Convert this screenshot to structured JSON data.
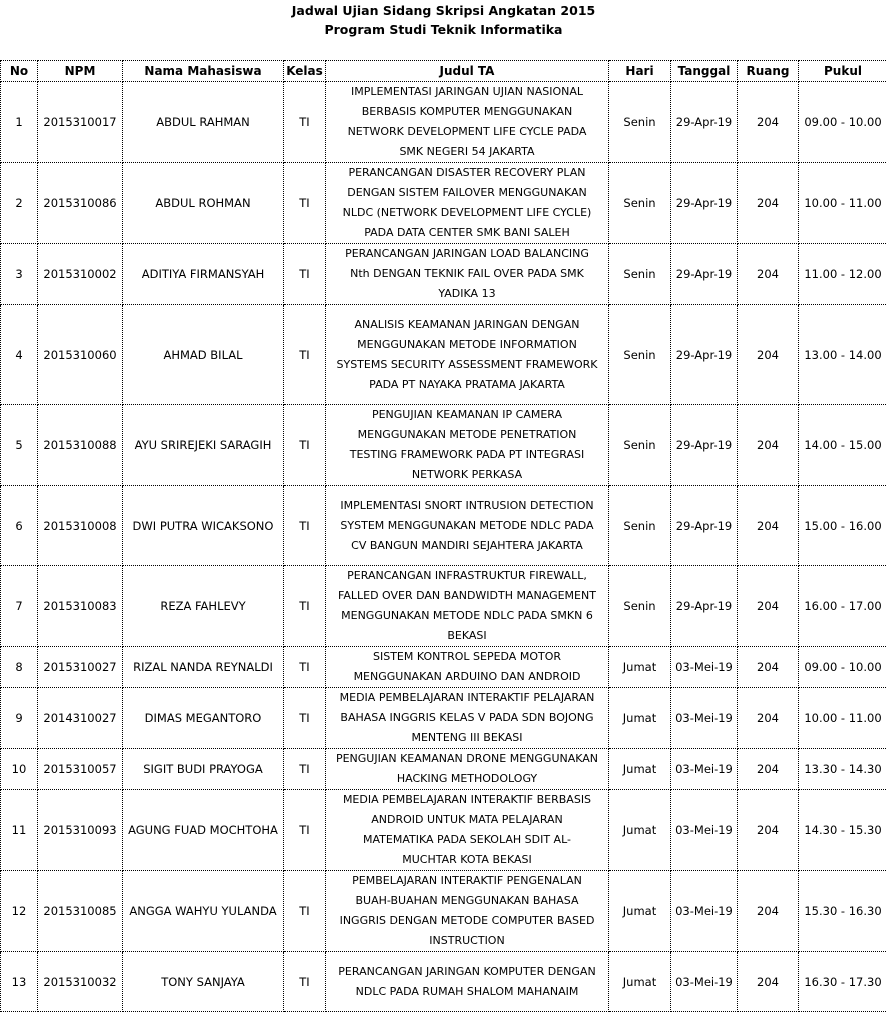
{
  "title": "Jadwal Ujian Sidang Skripsi Angkatan 2015",
  "subtitle": "Program Studi Teknik Informatika",
  "headers": [
    "No",
    "NPM",
    "Nama Mahasiswa",
    "Kelas",
    "Judul TA",
    "Hari",
    "Tanggal",
    "Ruang",
    "Pukul"
  ],
  "rows": [
    {
      "no": "1",
      "npm": "2015310017",
      "nama": "ABDUL RAHMAN",
      "kelas": "TI",
      "judul": "IMPLEMENTASI JARINGAN UJIAN NASIONAL\nBERBASIS KOMPUTER MENGGUNAKAN\nNETWORK DEVELOPMENT LIFE CYCLE PADA\nSMK NEGERI 54 JAKARTA",
      "hari": "Senin",
      "tanggal": "29-Apr-19",
      "ruang": "204",
      "pukul": "09.00 - 10.00"
    },
    {
      "no": "2",
      "npm": "2015310086",
      "nama": "ABDUL ROHMAN",
      "kelas": "TI",
      "judul": "PERANCANGAN DISASTER RECOVERY PLAN\nDENGAN SISTEM FAILOVER MENGGUNAKAN\nNLDC (NETWORK DEVELOPMENT LIFE CYCLE)\nPADA DATA CENTER SMK BANI SALEH",
      "hari": "Senin",
      "tanggal": "29-Apr-19",
      "ruang": "204",
      "pukul": "10.00 - 11.00"
    },
    {
      "no": "3",
      "npm": "2015310002",
      "nama": "ADITIYA FIRMANSYAH",
      "kelas": "TI",
      "judul": "PERANCANGAN JARINGAN LOAD BALANCING\nNth DENGAN TEKNIK FAIL OVER PADA SMK\nYADIKA 13",
      "hari": "Senin",
      "tanggal": "29-Apr-19",
      "ruang": "204",
      "pukul": "11.00 - 12.00"
    },
    {
      "no": "4",
      "npm": "2015310060",
      "nama": "AHMAD BILAL",
      "kelas": "TI",
      "judul": "ANALISIS KEAMANAN JARINGAN DENGAN\nMENGGUNAKAN METODE INFORMATION\nSYSTEMS SECURITY ASSESSMENT FRAMEWORK\nPADA PT NAYAKA PRATAMA JAKARTA",
      "hari": "Senin",
      "tanggal": "29-Apr-19",
      "ruang": "204",
      "pukul": "13.00 - 14.00"
    },
    {
      "no": "5",
      "npm": "2015310088",
      "nama": "AYU SRIREJEKI SARAGIH",
      "kelas": "TI",
      "judul": "PENGUJIAN KEAMANAN IP CAMERA\nMENGGUNAKAN METODE PENETRATION\nTESTING FRAMEWORK PADA PT INTEGRASI\nNETWORK PERKASA",
      "hari": "Senin",
      "tanggal": "29-Apr-19",
      "ruang": "204",
      "pukul": "14.00 - 15.00"
    },
    {
      "no": "6",
      "npm": "2015310008",
      "nama": "DWI PUTRA WICAKSONO",
      "kelas": "TI",
      "judul": "IMPLEMENTASI SNORT INTRUSION DETECTION\nSYSTEM MENGGUNAKAN METODE NDLC PADA\nCV BANGUN MANDIRI SEJAHTERA JAKARTA",
      "hari": "Senin",
      "tanggal": "29-Apr-19",
      "ruang": "204",
      "pukul": "15.00 - 16.00"
    },
    {
      "no": "7",
      "npm": "2015310083",
      "nama": "REZA FAHLEVY",
      "kelas": "TI",
      "judul": "PERANCANGAN INFRASTRUKTUR FIREWALL,\nFALLED OVER DAN BANDWIDTH MANAGEMENT\nMENGGUNAKAN METODE NDLC PADA SMKN 6\nBEKASI",
      "hari": "Senin",
      "tanggal": "29-Apr-19",
      "ruang": "204",
      "pukul": "16.00 - 17.00"
    },
    {
      "no": "8",
      "npm": "2015310027",
      "nama": "RIZAL NANDA REYNALDI",
      "kelas": "TI",
      "judul": "SISTEM KONTROL SEPEDA MOTOR\nMENGGUNAKAN ARDUINO DAN ANDROID",
      "hari": "Jumat",
      "tanggal": "03-Mei-19",
      "ruang": "204",
      "pukul": "09.00 - 10.00"
    },
    {
      "no": "9",
      "npm": "2014310027",
      "nama": "DIMAS MEGANTORO",
      "kelas": "TI",
      "judul": "MEDIA PEMBELAJARAN INTERAKTIF PELAJARAN\nBAHASA INGGRIS KELAS V PADA SDN BOJONG\nMENTENG III BEKASI",
      "hari": "Jumat",
      "tanggal": "03-Mei-19",
      "ruang": "204",
      "pukul": "10.00 - 11.00"
    },
    {
      "no": "10",
      "npm": "2015310057",
      "nama": "SIGIT BUDI PRAYOGA",
      "kelas": "TI",
      "judul": "PENGUJIAN KEAMANAN DRONE MENGGUNAKAN\nHACKING METHODOLOGY",
      "hari": "Jumat",
      "tanggal": "03-Mei-19",
      "ruang": "204",
      "pukul": "13.30 - 14.30"
    },
    {
      "no": "11",
      "npm": "2015310093",
      "nama": "AGUNG FUAD MOCHTOHA",
      "kelas": "TI",
      "judul": "MEDIA PEMBELAJARAN INTERAKTIF BERBASIS\nANDROID UNTUK MATA PELAJARAN\nMATEMATIKA PADA SEKOLAH SDIT AL-\nMUCHTAR KOTA BEKASI",
      "hari": "Jumat",
      "tanggal": "03-Mei-19",
      "ruang": "204",
      "pukul": "14.30 - 15.30"
    },
    {
      "no": "12",
      "npm": "2015310085",
      "nama": "ANGGA WAHYU YULANDA",
      "kelas": "TI",
      "judul": "PEMBELAJARAN INTERAKTIF PENGENALAN\nBUAH-BUAHAN MENGGUNAKAN BAHASA\nINGGRIS DENGAN METODE COMPUTER BASED\nINSTRUCTION",
      "hari": "Jumat",
      "tanggal": "03-Mei-19",
      "ruang": "204",
      "pukul": "15.30 - 16.30"
    },
    {
      "no": "13",
      "npm": "2015310032",
      "nama": "TONY SANJAYA",
      "kelas": "TI",
      "judul": "PERANCANGAN JARINGAN KOMPUTER DENGAN\nNDLC PADA RUMAH SHALOM MAHANAIM",
      "hari": "Jumat",
      "tanggal": "03-Mei-19",
      "ruang": "204",
      "pukul": "16.30 - 17.30"
    }
  ]
}
